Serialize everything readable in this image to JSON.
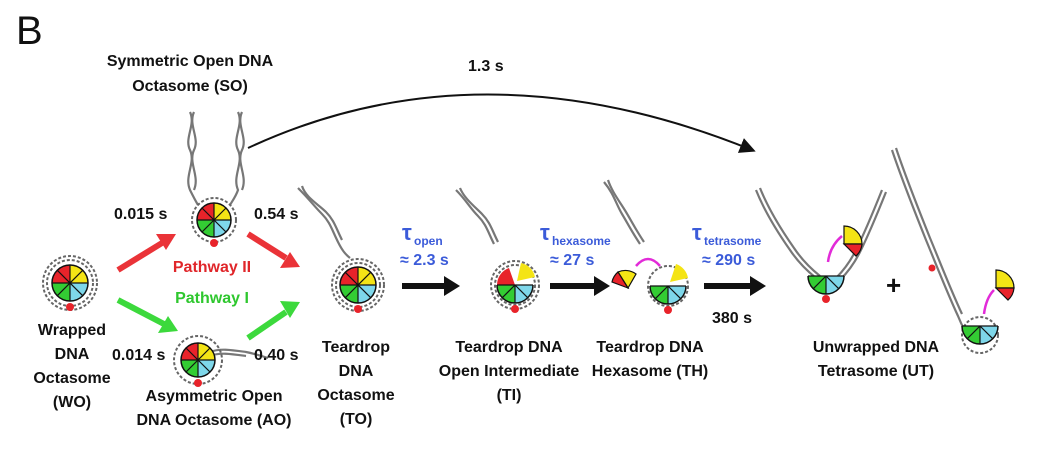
{
  "panel_letter": "B",
  "states": {
    "wo": [
      "Wrapped",
      "DNA",
      "Octasome",
      "(WO)"
    ],
    "so": [
      "Symmetric Open DNA",
      "Octasome (SO)"
    ],
    "ao": [
      "Asymmetric Open",
      "DNA Octasome (AO)"
    ],
    "to": [
      "Teardrop",
      "DNA",
      "Octasome",
      "(TO)"
    ],
    "ti": [
      "Teardrop DNA",
      "Open Intermediate",
      "(TI)"
    ],
    "th": [
      "Teardrop DNA",
      "Hexasome (TH)"
    ],
    "ut": [
      "Unwrapped DNA",
      "Tetrasome (UT)"
    ]
  },
  "pathways": {
    "p2": "Pathway II",
    "p1": "Pathway I"
  },
  "times": {
    "wo_so": "0.015 s",
    "so_to": "0.54 s",
    "wo_ao": "0.014 s",
    "ao_to": "0.40 s",
    "direct": "1.3 s",
    "th_ut": "380 s"
  },
  "taus": {
    "open": {
      "sym": "τ",
      "sub": "open",
      "val": "≈ 2.3 s"
    },
    "hexasome": {
      "sym": "τ",
      "sub": "hexasome",
      "val": "≈ 27 s"
    },
    "tetrasome": {
      "sym": "τ",
      "sub": "tetrasome",
      "val": "≈ 290 s"
    }
  },
  "plus": "+",
  "colors": {
    "red_arrow": "#ea3338",
    "green_arrow": "#3cd93c",
    "tau_blue": "#3b5bd9",
    "magenta": "#e22bd8",
    "wedge_red": "#e8232a",
    "wedge_yellow": "#f4e415",
    "wedge_green": "#33cc33",
    "wedge_cyan": "#7ed7ea"
  }
}
